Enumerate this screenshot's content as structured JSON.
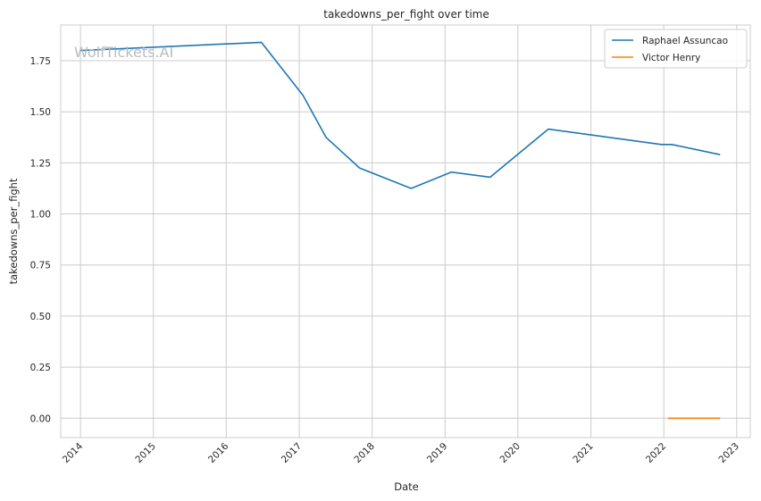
{
  "watermark": "WolfTickets.AI",
  "chart_data": {
    "type": "line",
    "title": "takedowns_per_fight over time",
    "xlabel": "Date",
    "ylabel": "takedowns_per_fight",
    "x_axis_kind": "date",
    "xlim": [
      "2013-09-24",
      "2023-03-10"
    ],
    "ylim": [
      -0.095,
      1.925
    ],
    "x_ticks": [
      "2014",
      "2015",
      "2016",
      "2017",
      "2018",
      "2019",
      "2020",
      "2021",
      "2022",
      "2023"
    ],
    "y_ticks": [
      "0.00",
      "0.25",
      "0.50",
      "0.75",
      "1.00",
      "1.25",
      "1.50",
      "1.75"
    ],
    "grid": true,
    "legend_position": "top-right",
    "series": [
      {
        "name": "Raphael Assuncao",
        "color": "#1f77b4",
        "points": [
          {
            "x": "2014-01-01",
            "y": 1.8
          },
          {
            "x": "2016-06-25",
            "y": 1.84
          },
          {
            "x": "2017-01-20",
            "y": 1.58
          },
          {
            "x": "2017-05-15",
            "y": 1.375
          },
          {
            "x": "2017-10-30",
            "y": 1.225
          },
          {
            "x": "2018-07-15",
            "y": 1.125
          },
          {
            "x": "2019-02-01",
            "y": 1.205
          },
          {
            "x": "2019-08-15",
            "y": 1.18
          },
          {
            "x": "2020-06-01",
            "y": 1.415
          },
          {
            "x": "2021-12-20",
            "y": 1.34
          },
          {
            "x": "2022-02-10",
            "y": 1.34
          },
          {
            "x": "2022-10-10",
            "y": 1.29
          }
        ]
      },
      {
        "name": "Victor Henry",
        "color": "#ff7f0e",
        "points": [
          {
            "x": "2022-01-22",
            "y": 0.0
          },
          {
            "x": "2022-10-10",
            "y": 0.0
          }
        ]
      }
    ]
  }
}
